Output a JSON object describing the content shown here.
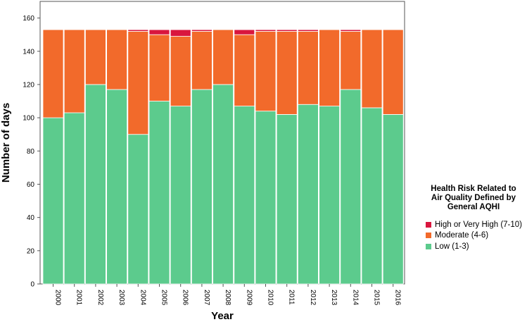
{
  "chart_data": {
    "type": "stacked-bar",
    "xlabel": "Year",
    "ylabel": "Number of days",
    "ylim": [
      0,
      170
    ],
    "yticks": [
      0,
      20,
      40,
      60,
      80,
      100,
      120,
      140,
      160
    ],
    "categories": [
      "2000",
      "2001",
      "2002",
      "2003",
      "2004",
      "2005",
      "2006",
      "2007",
      "2008",
      "2009",
      "2010",
      "2011",
      "2012",
      "2013",
      "2014",
      "2015",
      "2016"
    ],
    "series": [
      {
        "name": "Low (1-3)",
        "color": "#5ccb8d",
        "values": [
          100,
          103,
          120,
          117,
          90,
          110,
          107,
          117,
          120,
          107,
          104,
          102,
          108,
          107,
          117,
          106,
          102
        ]
      },
      {
        "name": "Moderate (4-6)",
        "color": "#f26a2b",
        "values": [
          53,
          50,
          33,
          36,
          62,
          40,
          42,
          35,
          33,
          43,
          48,
          50,
          44,
          46,
          35,
          47,
          51
        ]
      },
      {
        "name": "High or Very High (7-10)",
        "color": "#d9163e",
        "values": [
          0,
          0,
          0,
          0,
          1,
          3,
          4,
          1,
          0,
          3,
          1,
          1,
          1,
          0,
          1,
          0,
          0
        ]
      }
    ],
    "legend": {
      "title_lines": [
        "Health Risk Related to",
        "Air Quality Defined by",
        "General AQHI"
      ],
      "entries": [
        "High or Very High (7-10)",
        "Moderate (4-6)",
        "Low (1-3)"
      ],
      "position": "right"
    },
    "grid": false
  }
}
